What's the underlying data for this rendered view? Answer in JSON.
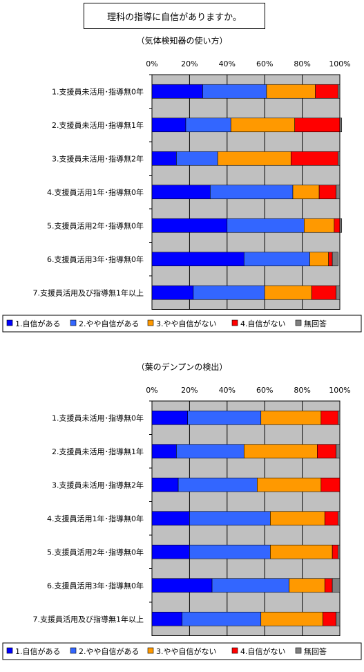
{
  "page": {
    "title": "理科の指導に自信がありますか。"
  },
  "colors": {
    "plot_bg": "#c0c0c0",
    "grid": "#000000",
    "series": [
      "#0000ff",
      "#3366ff",
      "#ff9900",
      "#ff0000",
      "#808080"
    ]
  },
  "chart_data": [
    {
      "type": "bar",
      "orientation": "horizontal",
      "stacked": "percent",
      "subtitle": "（気体検知器の使い方）",
      "x_ticks": [
        "0%",
        "20%",
        "40%",
        "60%",
        "80%",
        "100%"
      ],
      "xlim": [
        0,
        100
      ],
      "grid": true,
      "legend_position": "bottom",
      "categories": [
        "1.支援員未活用･指導無0年",
        "2.支援員未活用･指導無1年",
        "3.支援員未活用･指導無2年",
        "4.支援員活用1年･指導無0年",
        "5.支援員活用2年･指導無0年",
        "6.支援員活用3年･指導無0年",
        "7.支援員活用及び指導無1年以上"
      ],
      "series": [
        {
          "name": "1.自信がある",
          "values": [
            27,
            18,
            13,
            31,
            40,
            49,
            22
          ]
        },
        {
          "name": "2.やや自信がある",
          "values": [
            34,
            24,
            22,
            44,
            41,
            35,
            38
          ]
        },
        {
          "name": "3.やや自信がない",
          "values": [
            26,
            34,
            39,
            14,
            16,
            10,
            25
          ]
        },
        {
          "name": "4.自信がない",
          "values": [
            12,
            24,
            25,
            9,
            3,
            2,
            13
          ]
        },
        {
          "name": "無回答",
          "values": [
            1,
            1,
            1,
            2,
            1,
            3,
            2
          ]
        }
      ]
    },
    {
      "type": "bar",
      "orientation": "horizontal",
      "stacked": "percent",
      "subtitle": "（葉のデンプンの検出）",
      "x_ticks": [
        "0%",
        "20%",
        "40%",
        "60%",
        "80%",
        "100%"
      ],
      "xlim": [
        0,
        100
      ],
      "grid": true,
      "legend_position": "bottom",
      "categories": [
        "1.支援員未活用･指導無0年",
        "2.支援員未活用･指導無1年",
        "3.支援員未活用･指導無2年",
        "4.支援員活用1年･指導無0年",
        "5.支援員活用2年･指導無0年",
        "6.支援員活用3年･指導無0年",
        "7.支援員活用及び指導無1年以上"
      ],
      "series": [
        {
          "name": "1.自信がある",
          "values": [
            19,
            13,
            14,
            20,
            20,
            32,
            16
          ]
        },
        {
          "name": "2.やや自信がある",
          "values": [
            39,
            36,
            42,
            43,
            43,
            41,
            42
          ]
        },
        {
          "name": "3.やや自信がない",
          "values": [
            32,
            39,
            34,
            29,
            33,
            19,
            33
          ]
        },
        {
          "name": "4.自信がない",
          "values": [
            9,
            10,
            10,
            7,
            3,
            4,
            7
          ]
        },
        {
          "name": "無回答",
          "values": [
            1,
            2,
            0,
            1,
            1,
            4,
            2
          ]
        }
      ]
    }
  ]
}
